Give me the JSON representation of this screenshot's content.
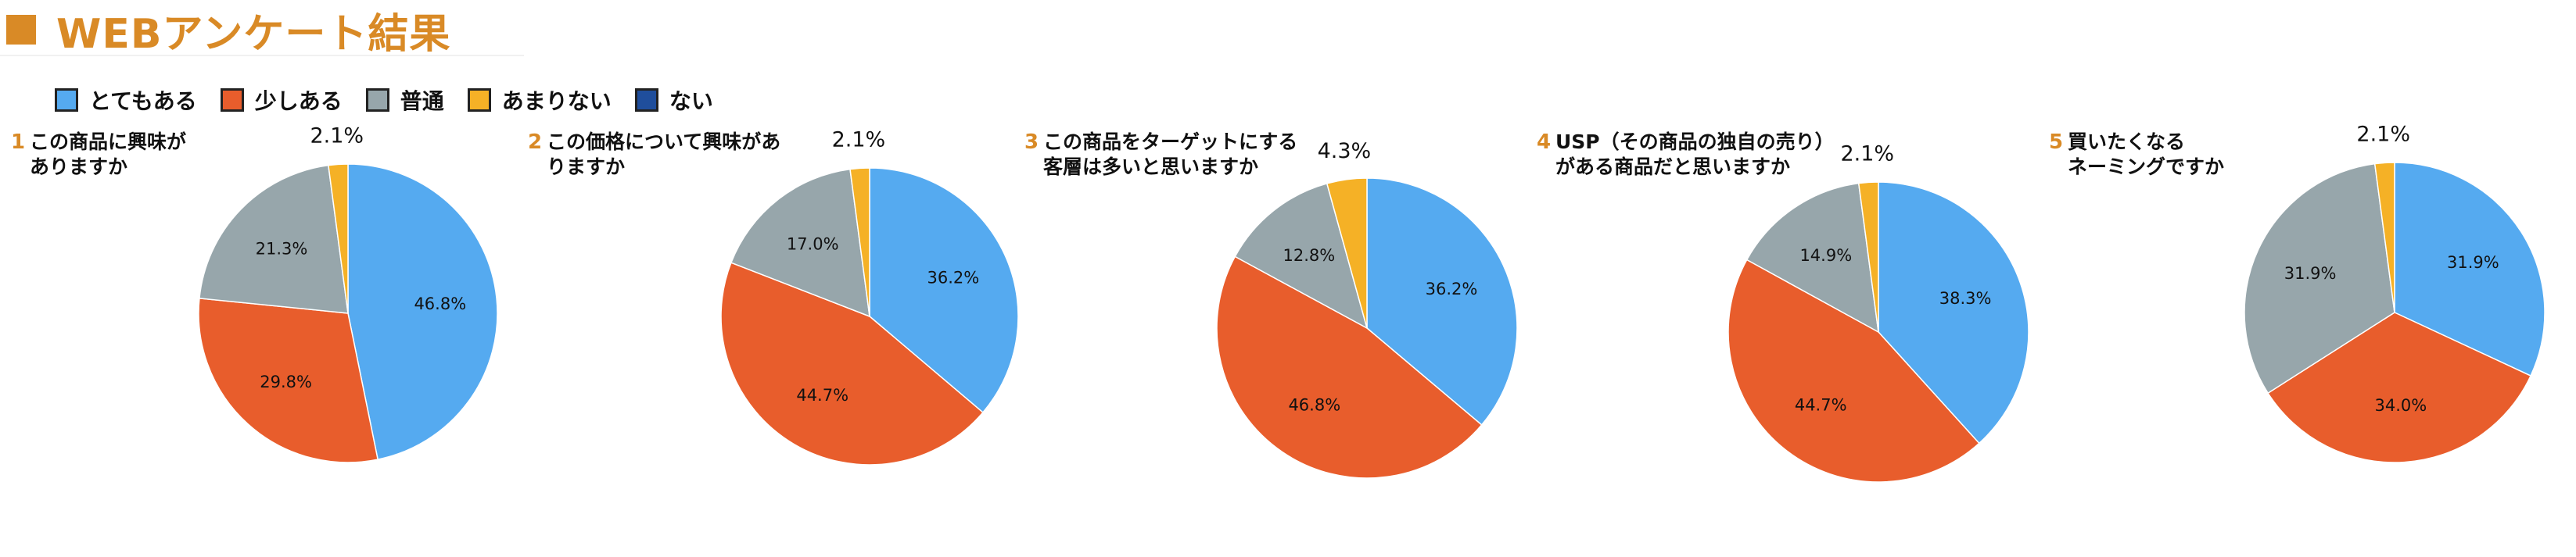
{
  "title": "WEBアンケート結果",
  "colors": {
    "accent": "#d98a26",
    "categories": [
      "#55aaf0",
      "#e85d2c",
      "#97a6ab",
      "#f5b126",
      "#1f4e9c"
    ]
  },
  "legend": [
    "とてもある",
    "少しある",
    "普通",
    "あまりない",
    "ない"
  ],
  "chart_data": [
    {
      "type": "pie",
      "number": "1",
      "title_lines": [
        "この商品に興味が",
        "ありますか"
      ],
      "categories": [
        "とてもある",
        "少しある",
        "普通",
        "あまりない",
        "ない"
      ],
      "values": [
        46.8,
        29.8,
        21.3,
        2.1,
        0
      ],
      "labels": [
        "46.8%",
        "29.8%",
        "21.3%",
        "2.1%"
      ]
    },
    {
      "type": "pie",
      "number": "2",
      "title_lines": [
        "この価格について興味があ",
        "りますか"
      ],
      "categories": [
        "とてもある",
        "少しある",
        "普通",
        "あまりない",
        "ない"
      ],
      "values": [
        36.2,
        44.7,
        17.0,
        2.1,
        0
      ],
      "labels": [
        "36.2%",
        "44.7%",
        "17.0%",
        "2.1%"
      ]
    },
    {
      "type": "pie",
      "number": "3",
      "title_lines": [
        "この商品をターゲットにする",
        "客層は多いと思いますか"
      ],
      "categories": [
        "とてもある",
        "少しある",
        "普通",
        "あまりない",
        "ない"
      ],
      "values": [
        36.2,
        46.8,
        12.8,
        4.3,
        0
      ],
      "labels": [
        "36.2%",
        "46.8%",
        "12.8%",
        "4.3%"
      ]
    },
    {
      "type": "pie",
      "number": "4",
      "title_lines": [
        "USP（その商品の独自の売り）",
        "がある商品だと思いますか"
      ],
      "categories": [
        "とてもある",
        "少しある",
        "普通",
        "あまりない",
        "ない"
      ],
      "values": [
        38.3,
        44.7,
        14.9,
        2.1,
        0
      ],
      "labels": [
        "38.3%",
        "44.7%",
        "14.9%",
        "2.1%"
      ]
    },
    {
      "type": "pie",
      "number": "5",
      "title_lines": [
        "買いたくなる",
        "ネーミングですか"
      ],
      "categories": [
        "とてもある",
        "少しある",
        "普通",
        "あまりない",
        "ない"
      ],
      "values": [
        31.9,
        34.0,
        31.9,
        2.1,
        0
      ],
      "labels": [
        "31.9%",
        "34.0%",
        "31.9%",
        "2.1%"
      ]
    }
  ]
}
